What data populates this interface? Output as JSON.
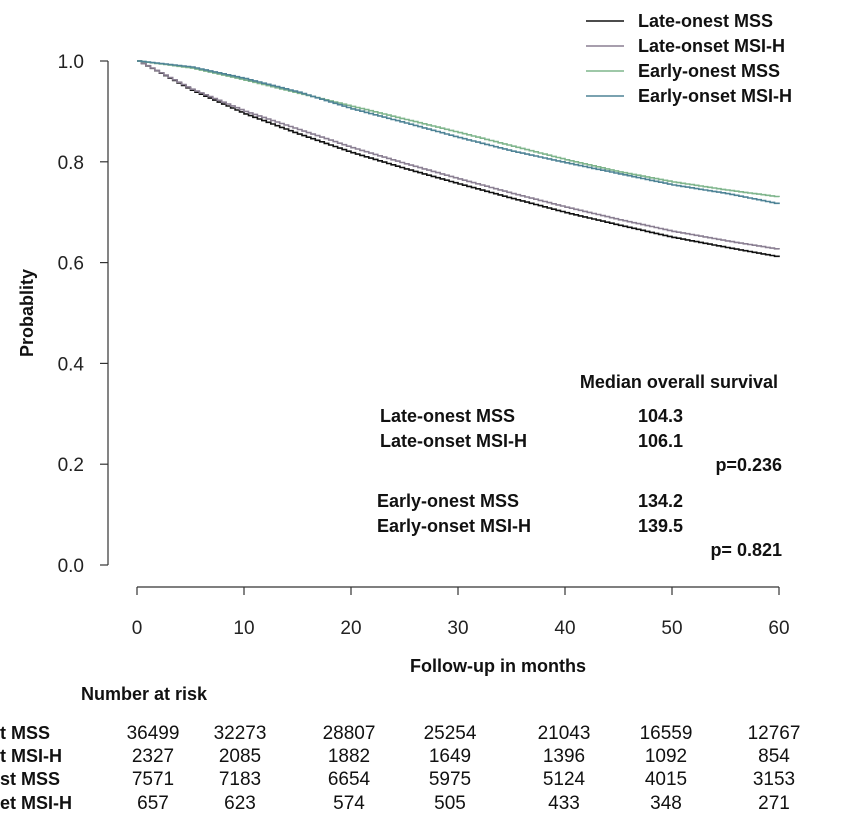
{
  "chart_data": {
    "type": "line",
    "title": "",
    "xlabel": "Follow-up in months",
    "ylabel": "Probablity",
    "xlim": [
      0,
      60
    ],
    "ylim": [
      0,
      1
    ],
    "x_ticks": [
      "0",
      "10",
      "20",
      "30",
      "40",
      "50",
      "60"
    ],
    "y_ticks": [
      "0.0",
      "0.2",
      "0.4",
      "0.6",
      "0.8",
      "1.0"
    ],
    "x": [
      0,
      5,
      10,
      15,
      20,
      25,
      30,
      35,
      40,
      45,
      50,
      55,
      60
    ],
    "series": [
      {
        "name": "Late-onest MSS",
        "color": "#111111",
        "values": [
          1.0,
          0.942,
          0.895,
          0.855,
          0.818,
          0.786,
          0.756,
          0.727,
          0.699,
          0.674,
          0.65,
          0.63,
          0.611
        ]
      },
      {
        "name": "Late-onset MSI-H",
        "color": "#8a7f92",
        "values": [
          1.0,
          0.944,
          0.9,
          0.864,
          0.828,
          0.796,
          0.766,
          0.737,
          0.71,
          0.685,
          0.662,
          0.643,
          0.626
        ]
      },
      {
        "name": "Early-onest MSS",
        "color": "#7fb58c",
        "values": [
          1.0,
          0.986,
          0.962,
          0.936,
          0.91,
          0.884,
          0.858,
          0.831,
          0.804,
          0.78,
          0.76,
          0.744,
          0.73
        ]
      },
      {
        "name": "Early-onset MSI-H",
        "color": "#4e8396",
        "values": [
          1.0,
          0.988,
          0.965,
          0.938,
          0.905,
          0.877,
          0.848,
          0.821,
          0.798,
          0.776,
          0.754,
          0.737,
          0.716
        ]
      }
    ],
    "legend_position": "top-right",
    "annotation": {
      "heading": "Median overall survival",
      "rows": [
        {
          "label": "Late-onest MSS",
          "value": "104.3"
        },
        {
          "label": "Late-onset MSI-H",
          "value": "106.1"
        },
        {
          "label": "Early-onest MSS",
          "value": "134.2"
        },
        {
          "label": "Early-onset MSI-H",
          "value": "139.5"
        }
      ],
      "p_values": [
        "p=0.236",
        "p= 0.821"
      ]
    },
    "risk_table": {
      "title": "Number at risk",
      "row_labels": [
        "t MSS",
        "t MSI-H",
        "st MSS",
        "et MSI-H"
      ],
      "rows": [
        [
          "36499",
          "32273",
          "28807",
          "25254",
          "21043",
          "16559",
          "12767"
        ],
        [
          "2327",
          "2085",
          "1882",
          "1649",
          "1396",
          "1092",
          "854"
        ],
        [
          "7571",
          "7183",
          "6654",
          "5975",
          "5124",
          "4015",
          "3153"
        ],
        [
          "657",
          "623",
          "574",
          "505",
          "433",
          "348",
          "271"
        ]
      ]
    }
  }
}
